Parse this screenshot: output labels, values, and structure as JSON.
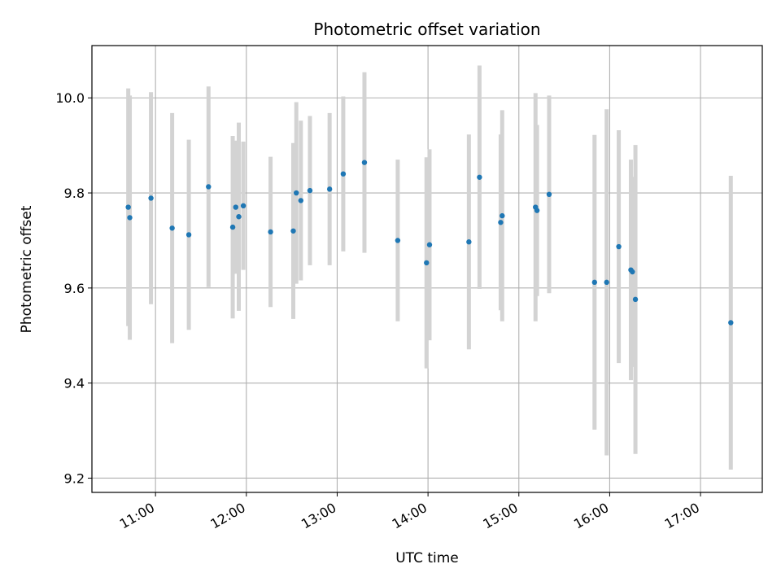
{
  "chart_data": {
    "type": "scatter",
    "title": "Photometric offset variation",
    "xlabel": "UTC time",
    "ylabel": "Photometric offset",
    "x_tick_labels": [
      "11:00",
      "12:00",
      "13:00",
      "14:00",
      "15:00",
      "16:00",
      "17:00"
    ],
    "x_tick_hours": [
      11,
      12,
      13,
      14,
      15,
      16,
      17
    ],
    "y_ticks": [
      9.2,
      9.4,
      9.6,
      9.8,
      10.0
    ],
    "y_tick_labels": [
      "9.2",
      "9.4",
      "9.6",
      "9.8",
      "10.0"
    ],
    "xlim_hours": [
      10.3,
      17.68
    ],
    "ylim": [
      9.17,
      10.11
    ],
    "grid": true,
    "colors": {
      "point": "#1f77b4",
      "errorbar": "#d3d3d3",
      "grid": "#b0b0b0"
    },
    "points": [
      {
        "t": "10:42",
        "y": 9.77,
        "err": 0.25
      },
      {
        "t": "10:43",
        "y": 9.748,
        "err": 0.257
      },
      {
        "t": "10:57",
        "y": 9.789,
        "err": 0.223
      },
      {
        "t": "11:11",
        "y": 9.726,
        "err": 0.242
      },
      {
        "t": "11:22",
        "y": 9.712,
        "err": 0.2
      },
      {
        "t": "11:35",
        "y": 9.813,
        "err": 0.211
      },
      {
        "t": "11:51",
        "y": 9.728,
        "err": 0.192
      },
      {
        "t": "11:53",
        "y": 9.77,
        "err": 0.14
      },
      {
        "t": "11:55",
        "y": 9.75,
        "err": 0.198
      },
      {
        "t": "11:58",
        "y": 9.773,
        "err": 0.135
      },
      {
        "t": "12:16",
        "y": 9.718,
        "err": 0.158
      },
      {
        "t": "12:31",
        "y": 9.72,
        "err": 0.185
      },
      {
        "t": "12:33",
        "y": 9.8,
        "err": 0.191
      },
      {
        "t": "12:36",
        "y": 9.784,
        "err": 0.168
      },
      {
        "t": "12:42",
        "y": 9.805,
        "err": 0.157
      },
      {
        "t": "12:55",
        "y": 9.808,
        "err": 0.16
      },
      {
        "t": "13:04",
        "y": 9.84,
        "err": 0.163
      },
      {
        "t": "13:18",
        "y": 9.864,
        "err": 0.19
      },
      {
        "t": "13:40",
        "y": 9.7,
        "err": 0.17
      },
      {
        "t": "13:59",
        "y": 9.653,
        "err": 0.222
      },
      {
        "t": "14:01",
        "y": 9.691,
        "err": 0.201
      },
      {
        "t": "14:27",
        "y": 9.697,
        "err": 0.226
      },
      {
        "t": "14:34",
        "y": 9.833,
        "err": 0.235
      },
      {
        "t": "14:48",
        "y": 9.738,
        "err": 0.185
      },
      {
        "t": "14:49",
        "y": 9.752,
        "err": 0.222
      },
      {
        "t": "15:11",
        "y": 9.77,
        "err": 0.24
      },
      {
        "t": "15:12",
        "y": 9.763,
        "err": 0.18
      },
      {
        "t": "15:20",
        "y": 9.797,
        "err": 0.208
      },
      {
        "t": "15:50",
        "y": 9.612,
        "err": 0.31
      },
      {
        "t": "15:58",
        "y": 9.612,
        "err": 0.364
      },
      {
        "t": "16:06",
        "y": 9.687,
        "err": 0.245
      },
      {
        "t": "16:14",
        "y": 9.638,
        "err": 0.232
      },
      {
        "t": "16:15",
        "y": 9.634,
        "err": 0.2
      },
      {
        "t": "16:17",
        "y": 9.576,
        "err": 0.325
      },
      {
        "t": "17:20",
        "y": 9.527,
        "err": 0.309
      }
    ]
  }
}
